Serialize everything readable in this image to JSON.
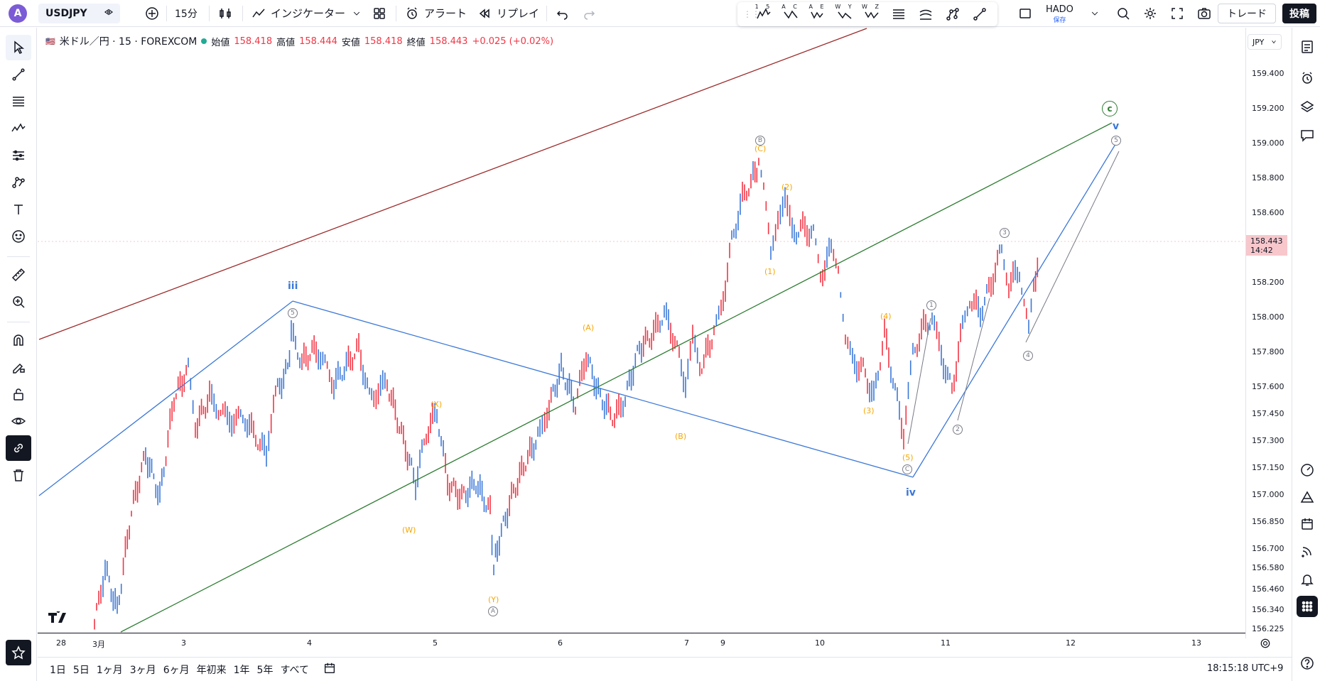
{
  "toolbar": {
    "avatar_letter": "A",
    "symbol": "USDJPY",
    "interval": "15分",
    "indicators_label": "インジケーター",
    "alert_label": "アラート",
    "replay_label": "リプレイ",
    "layout_name": "HADO",
    "layout_saved": "保存",
    "trade_label": "トレード",
    "post_label": "投稿",
    "elliott_tools": [
      "1 5",
      "A C",
      "A E",
      "W Y",
      "W Z"
    ]
  },
  "legend": {
    "symbol_desc": "米ドル／円 · 15 · FOREXCOM",
    "open_label": "始値",
    "open": "158.418",
    "high_label": "高値",
    "high": "158.444",
    "low_label": "安値",
    "low": "158.418",
    "close_label": "終値",
    "close": "158.443",
    "change": "+0.025 (+0.02%)"
  },
  "price_scale": {
    "currency": "JPY",
    "current_price": "158.443",
    "countdown": "14:42",
    "ticks": [
      "159.400",
      "159.200",
      "159.000",
      "158.800",
      "158.600",
      "158.443",
      "158.200",
      "158.000",
      "157.800",
      "157.600",
      "157.450",
      "157.300",
      "157.150",
      "157.000",
      "156.850",
      "156.700",
      "156.580",
      "156.460",
      "156.340",
      "156.225"
    ]
  },
  "time_axis": {
    "ticks": [
      "28",
      "3月",
      "3",
      "4",
      "5",
      "6",
      "7",
      "9",
      "10",
      "11",
      "12",
      "13"
    ]
  },
  "ranges": [
    "1日",
    "5日",
    "1ヶ月",
    "3ヶ月",
    "6ヶ月",
    "年初来",
    "1年",
    "5年",
    "すべて"
  ],
  "clock": "18:15:18 UTC+9",
  "waves": {
    "iii": "iii",
    "iv": "iv",
    "v": "v",
    "c_big": "c",
    "orange": [
      "(A)",
      "(B)",
      "(C)",
      "(W)",
      "(X)",
      "(Y)",
      "(1)",
      "(2)",
      "(3)",
      "(4)",
      "(5)"
    ],
    "circled": [
      "5",
      "B",
      "A",
      "C",
      "1",
      "2",
      "3",
      "4",
      "5"
    ]
  },
  "colors": {
    "up": "#3c78d8",
    "down": "#f23645",
    "trend_brown": "#9c2a2a",
    "trend_green": "#2e7d32",
    "channel_blue": "#3c78d8",
    "wave_orange": "#f7a600",
    "gray": "#787b86"
  }
}
